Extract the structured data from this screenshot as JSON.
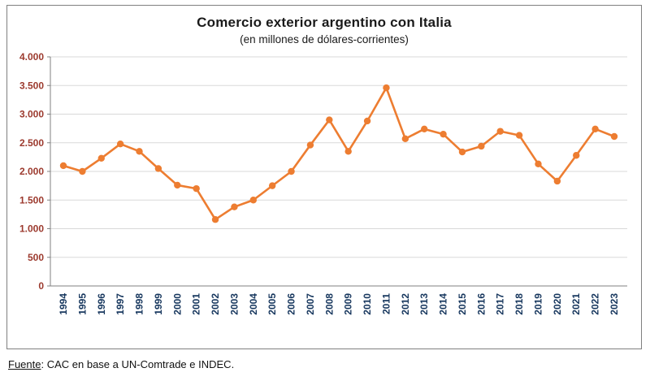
{
  "chart_data": {
    "type": "line",
    "title": "Comercio exterior argentino con Italia",
    "subtitle": "(en millones de dólares-corrientes)",
    "categories": [
      "1994",
      "1995",
      "1996",
      "1997",
      "1998",
      "1999",
      "2000",
      "2001",
      "2002",
      "2003",
      "2004",
      "2005",
      "2006",
      "2007",
      "2008",
      "2009",
      "2010",
      "2011",
      "2012",
      "2013",
      "2014",
      "2015",
      "2016",
      "2017",
      "2018",
      "2019",
      "2020",
      "2021",
      "2022",
      "2023"
    ],
    "values": [
      2100,
      2000,
      2230,
      2480,
      2350,
      2050,
      1760,
      1700,
      1160,
      1380,
      1500,
      1750,
      2000,
      2460,
      2900,
      2350,
      2880,
      3460,
      2570,
      2740,
      2650,
      2340,
      2440,
      2700,
      2630,
      2130,
      1830,
      2280,
      2740,
      2610
    ],
    "ylim": [
      0,
      4000
    ],
    "y_tick_step": 500,
    "y_tick_labels": [
      "0",
      "500",
      "1.000",
      "1.500",
      "2.000",
      "2.500",
      "3.000",
      "3.500",
      "4.000"
    ],
    "grid": true,
    "legend": false,
    "line_color": "#ED7D31",
    "marker_color": "#ED7D31",
    "grid_color": "#D9D9D9",
    "axis_color": "#808080",
    "y_label_color": "#9C3A2E",
    "x_label_color": "#17375E"
  },
  "footer": {
    "source_label": "Fuente",
    "source_text": ": CAC en base a UN-Comtrade e INDEC."
  }
}
